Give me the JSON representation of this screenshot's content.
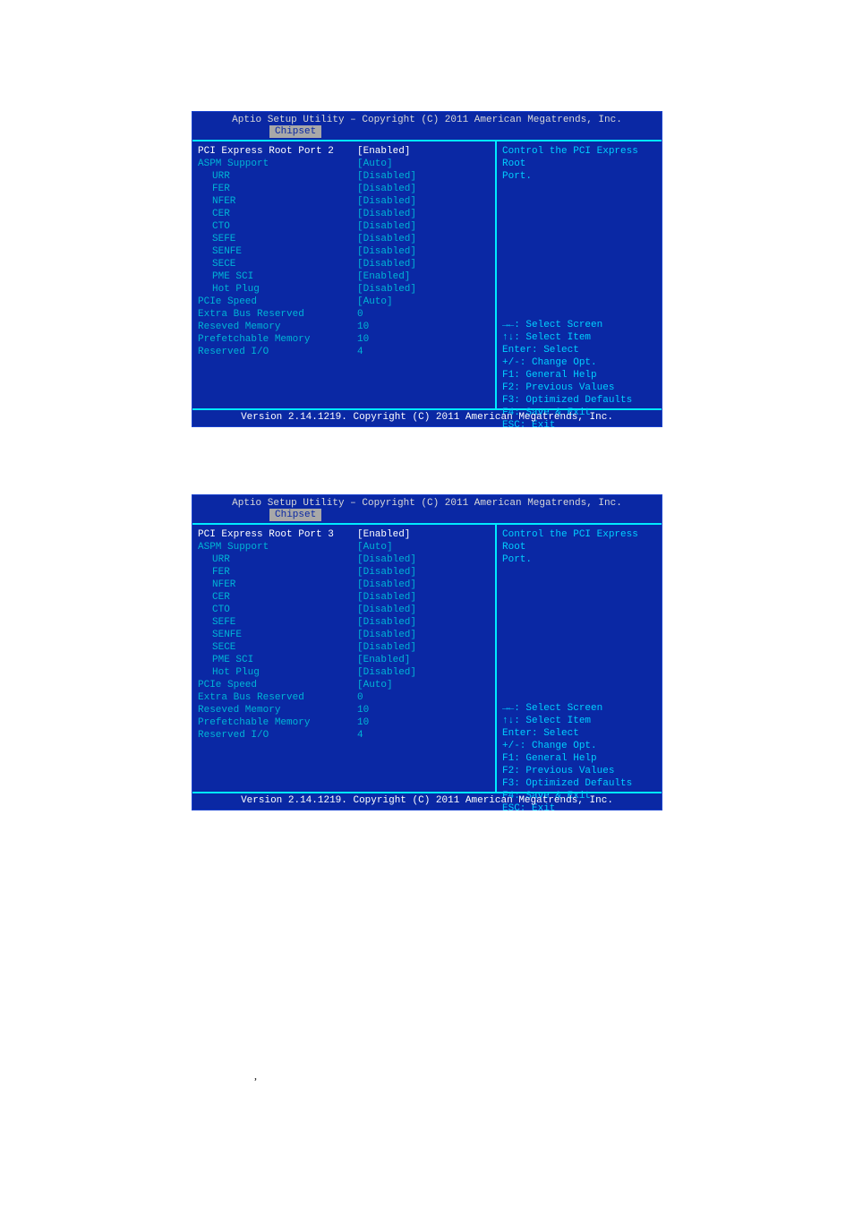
{
  "header_title": "Aptio Setup Utility – Copyright (C) 2011 American Megatrends, Inc.",
  "tab_label": "Chipset",
  "footer_text": "Version 2.14.1219. Copyright (C) 2011 American Megatrends, Inc.",
  "screens": [
    {
      "rows": [
        {
          "label": "PCI Express Root Port 2",
          "value": "[Enabled]",
          "selected": true
        },
        {
          "label": "ASPM Support",
          "value": "[Auto]"
        },
        {
          "label": "URR",
          "value": "[Disabled]",
          "indent": true
        },
        {
          "label": "FER",
          "value": "[Disabled]",
          "indent": true
        },
        {
          "label": "NFER",
          "value": "[Disabled]",
          "indent": true
        },
        {
          "label": "CER",
          "value": "[Disabled]",
          "indent": true
        },
        {
          "label": "CTO",
          "value": "[Disabled]",
          "indent": true
        },
        {
          "label": "SEFE",
          "value": "[Disabled]",
          "indent": true
        },
        {
          "label": "SENFE",
          "value": "[Disabled]",
          "indent": true
        },
        {
          "label": "SECE",
          "value": "[Disabled]",
          "indent": true
        },
        {
          "label": "PME SCI",
          "value": "[Enabled]",
          "indent": true
        },
        {
          "label": "Hot Plug",
          "value": "[Disabled]",
          "indent": true
        },
        {
          "label": "PCIe Speed",
          "value": "[Auto]"
        },
        {
          "label": "Extra Bus Reserved",
          "value": "0"
        },
        {
          "label": "Reseved Memory",
          "value": "10"
        },
        {
          "label": "Prefetchable Memory",
          "value": "10"
        },
        {
          "label": "Reserved I/O",
          "value": "4"
        }
      ],
      "help_top": [
        "Control the PCI Express Root",
        "Port."
      ]
    },
    {
      "rows": [
        {
          "label": "PCI Express Root Port 3",
          "value": "[Enabled]",
          "selected": true
        },
        {
          "label": "ASPM Support",
          "value": "[Auto]"
        },
        {
          "label": "URR",
          "value": "[Disabled]",
          "indent": true
        },
        {
          "label": "FER",
          "value": "[Disabled]",
          "indent": true
        },
        {
          "label": "NFER",
          "value": "[Disabled]",
          "indent": true
        },
        {
          "label": "CER",
          "value": "[Disabled]",
          "indent": true
        },
        {
          "label": "CTO",
          "value": "[Disabled]",
          "indent": true
        },
        {
          "label": "SEFE",
          "value": "[Disabled]",
          "indent": true
        },
        {
          "label": "SENFE",
          "value": "[Disabled]",
          "indent": true
        },
        {
          "label": "SECE",
          "value": "[Disabled]",
          "indent": true
        },
        {
          "label": "PME SCI",
          "value": "[Enabled]",
          "indent": true
        },
        {
          "label": "Hot Plug",
          "value": "[Disabled]",
          "indent": true
        },
        {
          "label": "PCIe Speed",
          "value": "[Auto]"
        },
        {
          "label": "Extra Bus Reserved",
          "value": "0"
        },
        {
          "label": "Reseved Memory",
          "value": "10"
        },
        {
          "label": "Prefetchable Memory",
          "value": "10"
        },
        {
          "label": "Reserved I/O",
          "value": "4"
        }
      ],
      "help_top": [
        "Control the PCI Express Root",
        "Port."
      ]
    }
  ],
  "help_keys": [
    "→←: Select Screen",
    "↑↓: Select Item",
    "Enter: Select",
    "+/-: Change Opt.",
    "F1: General Help",
    "F2: Previous Values",
    "F3: Optimized Defaults",
    "F4: Save & Exit",
    "ESC: Exit"
  ],
  "colors": {
    "bg": "#0a28a4",
    "border": "#00eaff",
    "text": "#00b5d6",
    "selected": "#ffffff",
    "tab_bg": "#a8a8a8",
    "footer_text": "#ffffff"
  },
  "page_mark": ","
}
